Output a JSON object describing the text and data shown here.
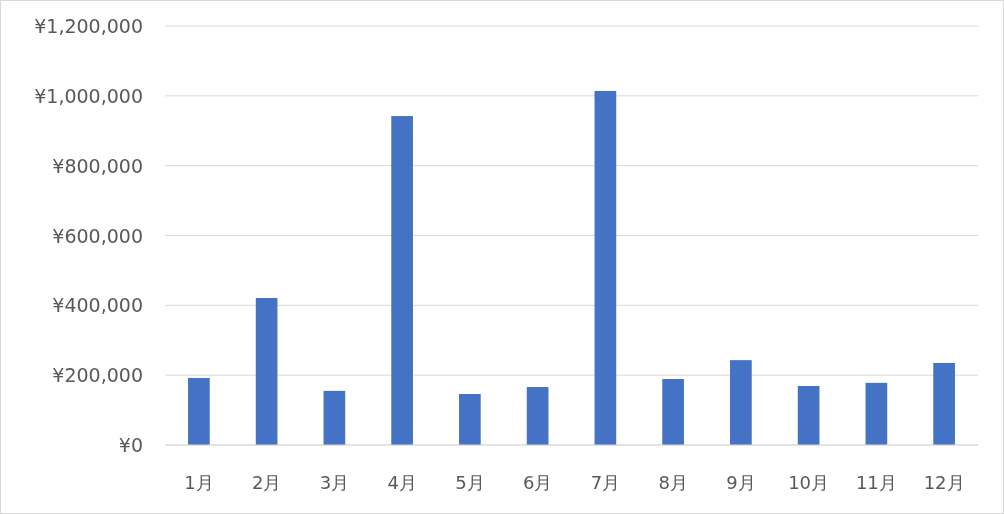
{
  "chart_data": {
    "type": "bar",
    "categories": [
      "1月",
      "2月",
      "3月",
      "4月",
      "5月",
      "6月",
      "7月",
      "8月",
      "9月",
      "10月",
      "11月",
      "12月"
    ],
    "values": [
      192000,
      421000,
      155000,
      942000,
      146000,
      166000,
      1014000,
      189000,
      243000,
      169000,
      178000,
      235000
    ],
    "color": "#4472c4",
    "ylim": [
      0,
      1200000
    ],
    "yticks": [
      {
        "value": 0,
        "label": "¥0"
      },
      {
        "value": 200000,
        "label": "¥200,000"
      },
      {
        "value": 400000,
        "label": "¥400,000"
      },
      {
        "value": 600000,
        "label": "¥600,000"
      },
      {
        "value": 800000,
        "label": "¥800,000"
      },
      {
        "value": 1000000,
        "label": "¥1,000,000"
      },
      {
        "value": 1200000,
        "label": "¥1,200,000"
      }
    ],
    "grid": "y"
  }
}
